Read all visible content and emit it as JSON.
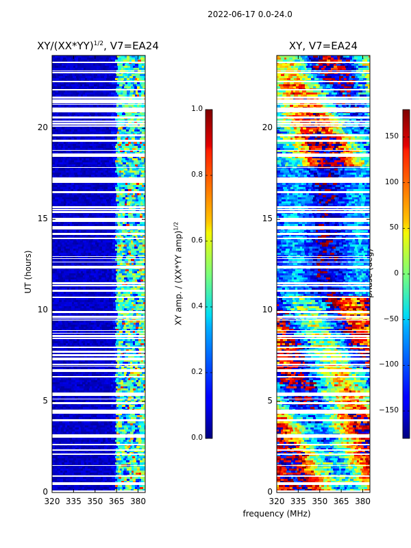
{
  "suptitle": "2022-06-17 0.0-24.0",
  "chart_data": [
    {
      "type": "heatmap",
      "title": "XY/(XX*YY)",
      "title_exponent": "1/2",
      "title_suffix": ", V7=EA24",
      "ylabel": "UT (hours)",
      "xlabel": "",
      "xlim": [
        320,
        385
      ],
      "ylim": [
        0,
        24
      ],
      "x_ticks": [
        320,
        335,
        350,
        365,
        380
      ],
      "y_ticks": [
        0,
        5,
        10,
        15,
        20
      ],
      "colorbar": {
        "label": "XY amp. / (XX*YY amp)",
        "label_exponent": "1/2",
        "range": [
          0.0,
          1.0
        ],
        "ticks": [
          "0.0",
          "0.2",
          "0.4",
          "0.6",
          "0.8",
          "1.0"
        ],
        "colormap": "jet"
      }
    },
    {
      "type": "heatmap",
      "title": "XY, V7=EA24",
      "ylabel": "",
      "xlabel": "frequency (MHz)",
      "xlim": [
        320,
        385
      ],
      "ylim": [
        0,
        24
      ],
      "x_ticks": [
        320,
        335,
        350,
        365,
        380
      ],
      "y_ticks": [
        0,
        5,
        10,
        15,
        20
      ],
      "colorbar": {
        "label": "phase (deg)",
        "range": [
          -180,
          180
        ],
        "ticks": [
          "150",
          "100",
          "50",
          "0",
          "−50",
          "−100",
          "−150"
        ],
        "colormap": "jet"
      }
    }
  ]
}
